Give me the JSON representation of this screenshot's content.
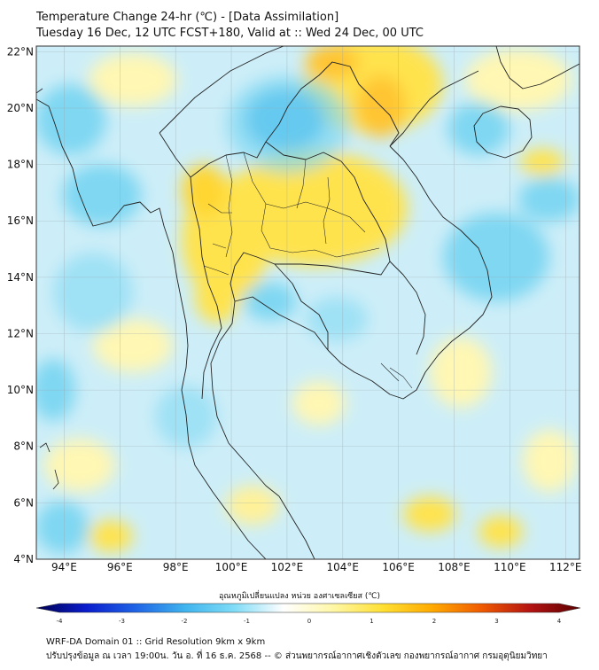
{
  "header": {
    "title_line1": "Temperature Change 24-hr (℃) - [Data Assimilation]",
    "title_line2": "Tuesday 16 Dec, 12 UTC FCST+180, Valid at :: Wed 24 Dec, 00 UTC"
  },
  "map": {
    "lon_range": [
      93,
      112.5
    ],
    "lat_range": [
      4,
      22.2
    ],
    "lat_labels": [
      "22°N",
      "20°N",
      "18°N",
      "16°N",
      "14°N",
      "12°N",
      "10°N",
      "8°N",
      "6°N",
      "4°N"
    ],
    "lon_labels": [
      "94°E",
      "96°E",
      "98°E",
      "100°E",
      "102°E",
      "104°E",
      "106°E",
      "108°E",
      "110°E",
      "112°E"
    ],
    "colors": {
      "background": "#cdeef8",
      "warm": "#ffe34d",
      "light_warm": "#fff7b3",
      "cool": "#7fd7f2",
      "cold": "#2ea8e6",
      "hot": "#ffc533",
      "borders": "#222222"
    }
  },
  "colorbar": {
    "title": "อุณหภูมิเปลี่ยนแปลง หน่วย องศาเซลเซียส (℃)",
    "ticks": [
      "-4",
      "-3",
      "-2",
      "-1",
      "0",
      "1",
      "2",
      "3",
      "4"
    ],
    "stops": [
      "#000050",
      "#0a1ccc",
      "#1f63e6",
      "#3fb4ee",
      "#7fdcf7",
      "#ffffff",
      "#fff7a6",
      "#ffe033",
      "#ffaa00",
      "#f05a00",
      "#b31212",
      "#5a0000"
    ]
  },
  "footer": {
    "line1": "WRF-DA Domain 01 :: Grid Resolution 9km x 9km",
    "line2": "ปรับปรุงข้อมูล ณ เวลา 19:00น. วัน อ. ที่ 16 ธ.ค. 2568 -- © ส่วนพยากรณ์อากาศเชิงตัวเลข กองพยากรณ์อากาศ กรมอุตุนิยมวิทยา"
  }
}
